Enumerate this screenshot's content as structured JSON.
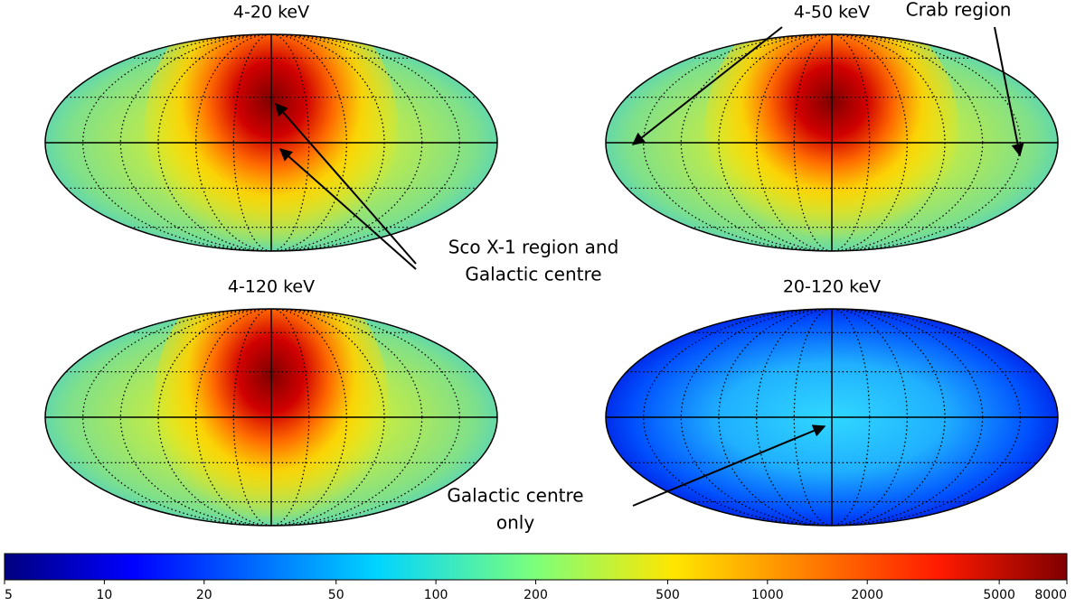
{
  "chart_data": [
    {
      "type": "sky-map",
      "title": "4-20 keV"
    },
    {
      "type": "sky-map",
      "title": "4-50 keV"
    },
    {
      "type": "sky-map",
      "title": "4-120 keV"
    },
    {
      "type": "sky-map",
      "title": "20-120 keV"
    }
  ],
  "colorbar": {
    "scale": "log",
    "lim": [
      5,
      8000
    ],
    "ticks": [
      5,
      10,
      20,
      50,
      100,
      200,
      500,
      1000,
      2000,
      5000,
      8000
    ],
    "colormap": "jet"
  },
  "annotations": [
    {
      "lines": [
        "Crab region"
      ]
    },
    {
      "lines": [
        "Sco X-1 region and",
        "Galactic centre"
      ]
    },
    {
      "lines": [
        "Galactic centre",
        "only"
      ]
    }
  ]
}
